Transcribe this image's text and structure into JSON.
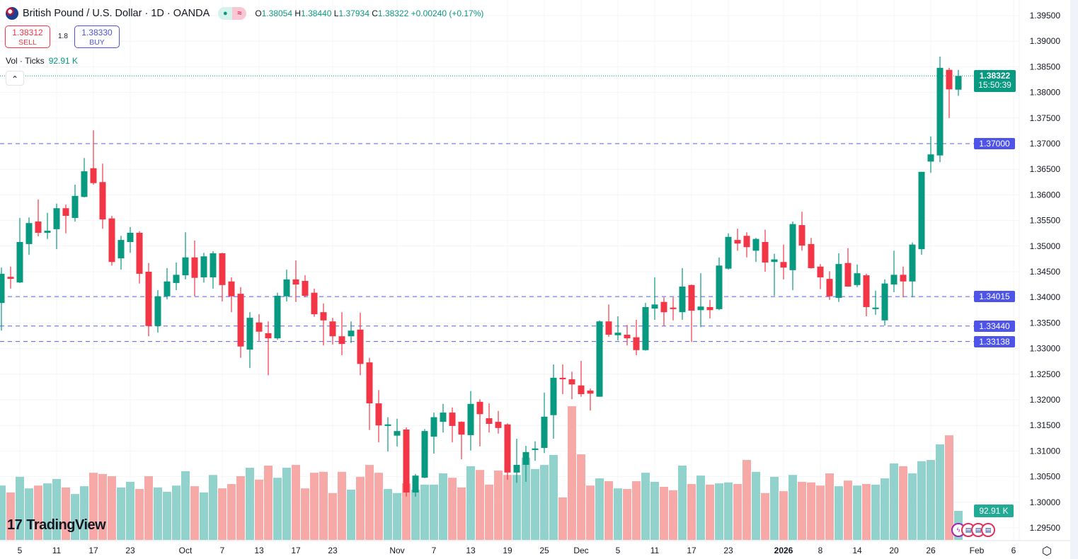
{
  "header": {
    "symbol_title": "British Pound / U.S. Dollar · 1D · OANDA",
    "status_dot_icon": "market-open-dot",
    "status_wave_icon": "approx-icon",
    "open_label": "O",
    "open": "1.38054",
    "high_label": "H",
    "high": "1.38440",
    "low_label": "L",
    "low": "1.37934",
    "close_label": "C",
    "close": "1.38322",
    "change": "+0.00240 (+0.17%)"
  },
  "trade": {
    "sell_price": "1.38312",
    "sell_label": "SELL",
    "spread": "1.8",
    "buy_price": "1.38330",
    "buy_label": "BUY"
  },
  "volume_legend": {
    "label": "Vol · Ticks",
    "value": "92.91 K"
  },
  "collapse_icon": "chevron-up",
  "price_badge": {
    "price": "1.38322",
    "countdown": "15:50:39",
    "color": "#089981"
  },
  "volume_badge": {
    "value": "92.91 K",
    "color": "#22ab94"
  },
  "logo": {
    "text": "TradingView"
  },
  "colors": {
    "up": "#089981",
    "down": "#f23645",
    "vol_up": "#92d2cc",
    "vol_down": "#f7a9a7",
    "hline": "#5b5fe6"
  },
  "chart_data": {
    "type": "candlestick",
    "symbol": "GBPUSD",
    "interval": "1D",
    "ylim": [
      1.2925,
      1.3975
    ],
    "grid": true,
    "y_ticks": [
      "1.39500",
      "1.39000",
      "1.38500",
      "1.38000",
      "1.37500",
      "1.37000",
      "1.36500",
      "1.36000",
      "1.35500",
      "1.35000",
      "1.34500",
      "1.34000",
      "1.33500",
      "1.33000",
      "1.32500",
      "1.32000",
      "1.31500",
      "1.31000",
      "1.30500",
      "1.30000",
      "1.29500"
    ],
    "x_ticks": [
      {
        "label": "5",
        "bar": 2
      },
      {
        "label": "11",
        "bar": 6
      },
      {
        "label": "17",
        "bar": 10
      },
      {
        "label": "23",
        "bar": 14
      },
      {
        "label": "Oct",
        "bar": 20
      },
      {
        "label": "7",
        "bar": 24
      },
      {
        "label": "13",
        "bar": 28
      },
      {
        "label": "17",
        "bar": 32
      },
      {
        "label": "23",
        "bar": 36
      },
      {
        "label": "Nov",
        "bar": 43
      },
      {
        "label": "7",
        "bar": 47
      },
      {
        "label": "13",
        "bar": 51
      },
      {
        "label": "19",
        "bar": 55
      },
      {
        "label": "25",
        "bar": 59
      },
      {
        "label": "Dec",
        "bar": 63
      },
      {
        "label": "5",
        "bar": 67
      },
      {
        "label": "11",
        "bar": 71
      },
      {
        "label": "17",
        "bar": 75
      },
      {
        "label": "23",
        "bar": 79
      },
      {
        "label": "2026",
        "bar": 85
      },
      {
        "label": "8",
        "bar": 89
      },
      {
        "label": "14",
        "bar": 93
      },
      {
        "label": "20",
        "bar": 97
      },
      {
        "label": "26",
        "bar": 101
      },
      {
        "label": "Feb",
        "bar": 106
      },
      {
        "label": "6",
        "bar": 110
      }
    ],
    "horizontal_lines": [
      {
        "price": "1.37000"
      },
      {
        "price": "1.34015"
      },
      {
        "price": "1.33440"
      },
      {
        "price": "1.33138"
      }
    ],
    "ohlc_columns": [
      "open",
      "high",
      "low",
      "close"
    ],
    "ohlc": [
      [
        1.3389,
        1.3458,
        1.3335,
        1.3446
      ],
      [
        1.344,
        1.346,
        1.3417,
        1.3436
      ],
      [
        1.3429,
        1.3555,
        1.3428,
        1.3508
      ],
      [
        1.3504,
        1.3556,
        1.3483,
        1.3545
      ],
      [
        1.3548,
        1.3591,
        1.3519,
        1.3526
      ],
      [
        1.3526,
        1.3565,
        1.3514,
        1.353
      ],
      [
        1.3533,
        1.3583,
        1.3494,
        1.3574
      ],
      [
        1.3574,
        1.3581,
        1.3525,
        1.3559
      ],
      [
        1.3555,
        1.362,
        1.3548,
        1.3598
      ],
      [
        1.3596,
        1.3672,
        1.3595,
        1.3646
      ],
      [
        1.3652,
        1.3726,
        1.362,
        1.3623
      ],
      [
        1.3625,
        1.3661,
        1.3534,
        1.3552
      ],
      [
        1.3554,
        1.3559,
        1.3462,
        1.3469
      ],
      [
        1.3476,
        1.352,
        1.3454,
        1.3512
      ],
      [
        1.3508,
        1.3537,
        1.3487,
        1.3526
      ],
      [
        1.3526,
        1.3529,
        1.3427,
        1.3446
      ],
      [
        1.345,
        1.3467,
        1.3324,
        1.3344
      ],
      [
        1.3344,
        1.3414,
        1.3331,
        1.3402
      ],
      [
        1.3402,
        1.3457,
        1.3396,
        1.3431
      ],
      [
        1.3428,
        1.3468,
        1.3414,
        1.3444
      ],
      [
        1.3443,
        1.3527,
        1.3435,
        1.3478
      ],
      [
        1.3478,
        1.3511,
        1.3402,
        1.3438
      ],
      [
        1.3439,
        1.3487,
        1.3429,
        1.348
      ],
      [
        1.3439,
        1.349,
        1.3417,
        1.3486
      ],
      [
        1.3486,
        1.3487,
        1.3392,
        1.3424
      ],
      [
        1.3431,
        1.3439,
        1.3371,
        1.3402
      ],
      [
        1.3407,
        1.342,
        1.3282,
        1.3304
      ],
      [
        1.3298,
        1.3371,
        1.3262,
        1.336
      ],
      [
        1.3351,
        1.3367,
        1.3315,
        1.3333
      ],
      [
        1.333,
        1.3353,
        1.3248,
        1.332
      ],
      [
        1.332,
        1.3409,
        1.3317,
        1.3403
      ],
      [
        1.3402,
        1.3454,
        1.3392,
        1.3435
      ],
      [
        1.3435,
        1.3472,
        1.3391,
        1.3425
      ],
      [
        1.3432,
        1.3443,
        1.34,
        1.3403
      ],
      [
        1.3409,
        1.3417,
        1.3362,
        1.3367
      ],
      [
        1.3371,
        1.3388,
        1.3306,
        1.3355
      ],
      [
        1.3353,
        1.336,
        1.3308,
        1.3324
      ],
      [
        1.3324,
        1.3371,
        1.3287,
        1.3309
      ],
      [
        1.3324,
        1.3353,
        1.3311,
        1.3335
      ],
      [
        1.3337,
        1.337,
        1.3248,
        1.327
      ],
      [
        1.3273,
        1.3282,
        1.3141,
        1.3193
      ],
      [
        1.3193,
        1.3219,
        1.3117,
        1.315
      ],
      [
        1.3149,
        1.3166,
        1.3099,
        1.3152
      ],
      [
        1.313,
        1.3163,
        1.3109,
        1.3139
      ],
      [
        1.3142,
        1.3146,
        1.3011,
        1.3019
      ],
      [
        1.3019,
        1.3055,
        1.3011,
        1.3052
      ],
      [
        1.3048,
        1.3143,
        1.3047,
        1.3139
      ],
      [
        1.3128,
        1.3175,
        1.3095,
        1.3166
      ],
      [
        1.3157,
        1.3192,
        1.3136,
        1.3175
      ],
      [
        1.3175,
        1.3185,
        1.3117,
        1.3149
      ],
      [
        1.3157,
        1.3158,
        1.3084,
        1.3132
      ],
      [
        1.3131,
        1.3217,
        1.3101,
        1.3192
      ],
      [
        1.3196,
        1.3201,
        1.3109,
        1.3172
      ],
      [
        1.3164,
        1.3193,
        1.3136,
        1.3153
      ],
      [
        1.3157,
        1.3178,
        1.3134,
        1.3145
      ],
      [
        1.3152,
        1.3154,
        1.3044,
        1.3058
      ],
      [
        1.3058,
        1.3124,
        1.3038,
        1.3073
      ],
      [
        1.3073,
        1.311,
        1.304,
        1.3098
      ],
      [
        1.3102,
        1.3119,
        1.3081,
        1.3105
      ],
      [
        1.3106,
        1.3214,
        1.3096,
        1.3167
      ],
      [
        1.317,
        1.3269,
        1.3124,
        1.3243
      ],
      [
        1.3243,
        1.3269,
        1.3211,
        1.324
      ],
      [
        1.324,
        1.3255,
        1.3201,
        1.323
      ],
      [
        1.3228,
        1.3276,
        1.3206,
        1.3211
      ],
      [
        1.3218,
        1.3222,
        1.3179,
        1.3212
      ],
      [
        1.3206,
        1.3355,
        1.3206,
        1.3353
      ],
      [
        1.3353,
        1.3386,
        1.3323,
        1.3327
      ],
      [
        1.3326,
        1.3363,
        1.3316,
        1.3331
      ],
      [
        1.3327,
        1.3346,
        1.3306,
        1.332
      ],
      [
        1.3322,
        1.3356,
        1.3287,
        1.3297
      ],
      [
        1.3297,
        1.3389,
        1.3296,
        1.3381
      ],
      [
        1.3378,
        1.3439,
        1.3356,
        1.3386
      ],
      [
        1.3391,
        1.34,
        1.3344,
        1.3371
      ],
      [
        1.338,
        1.34,
        1.3355,
        1.3377
      ],
      [
        1.3371,
        1.3457,
        1.3356,
        1.3421
      ],
      [
        1.3424,
        1.3425,
        1.3313,
        1.3374
      ],
      [
        1.3375,
        1.3447,
        1.3342,
        1.3382
      ],
      [
        1.3381,
        1.3395,
        1.3359,
        1.3375
      ],
      [
        1.3377,
        1.3478,
        1.3375,
        1.3462
      ],
      [
        1.3456,
        1.3525,
        1.3454,
        1.3518
      ],
      [
        1.3512,
        1.3534,
        1.3491,
        1.3505
      ],
      [
        1.352,
        1.3527,
        1.3478,
        1.3498
      ],
      [
        1.3491,
        1.3516,
        1.3469,
        1.3514
      ],
      [
        1.3508,
        1.3532,
        1.345,
        1.3468
      ],
      [
        1.3469,
        1.3485,
        1.3403,
        1.3474
      ],
      [
        1.3469,
        1.3503,
        1.3435,
        1.3458
      ],
      [
        1.3453,
        1.3548,
        1.3414,
        1.3543
      ],
      [
        1.3541,
        1.3567,
        1.3491,
        1.3501
      ],
      [
        1.3504,
        1.3516,
        1.3456,
        1.3457
      ],
      [
        1.346,
        1.3465,
        1.3416,
        1.3439
      ],
      [
        1.3436,
        1.3451,
        1.3395,
        1.3402
      ],
      [
        1.3399,
        1.3486,
        1.3391,
        1.3465
      ],
      [
        1.3467,
        1.3496,
        1.3421,
        1.3421
      ],
      [
        1.3424,
        1.3464,
        1.342,
        1.3447
      ],
      [
        1.3443,
        1.3446,
        1.3363,
        1.3381
      ],
      [
        1.3377,
        1.3413,
        1.3366,
        1.338
      ],
      [
        1.3355,
        1.3435,
        1.3345,
        1.3427
      ],
      [
        1.3425,
        1.3491,
        1.341,
        1.3444
      ],
      [
        1.3444,
        1.346,
        1.34,
        1.3431
      ],
      [
        1.3431,
        1.3507,
        1.34,
        1.3503
      ],
      [
        1.3494,
        1.3645,
        1.3483,
        1.3645
      ],
      [
        1.3665,
        1.3714,
        1.3643,
        1.3679
      ],
      [
        1.3677,
        1.387,
        1.3664,
        1.3848
      ],
      [
        1.3844,
        1.3848,
        1.375,
        1.3806
      ],
      [
        1.38054,
        1.3844,
        1.37934,
        1.38322
      ]
    ],
    "volume_unit": "K ticks",
    "volume": [
      174,
      152,
      202,
      165,
      174,
      181,
      195,
      168,
      147,
      172,
      215,
      211,
      204,
      168,
      186,
      163,
      204,
      168,
      154,
      174,
      220,
      172,
      152,
      208,
      165,
      179,
      204,
      231,
      193,
      238,
      199,
      231,
      240,
      165,
      215,
      218,
      150,
      218,
      161,
      202,
      240,
      215,
      163,
      150,
      181,
      161,
      177,
      177,
      213,
      199,
      168,
      236,
      224,
      177,
      222,
      208,
      208,
      263,
      227,
      240,
      272,
      136,
      428,
      274,
      174,
      197,
      188,
      165,
      163,
      188,
      215,
      186,
      170,
      159,
      238,
      179,
      206,
      177,
      181,
      184,
      179,
      256,
      218,
      150,
      202,
      156,
      208,
      186,
      184,
      174,
      213,
      172,
      190,
      174,
      179,
      177,
      197,
      245,
      236,
      213,
      252,
      256,
      306,
      335,
      92.91
    ]
  }
}
